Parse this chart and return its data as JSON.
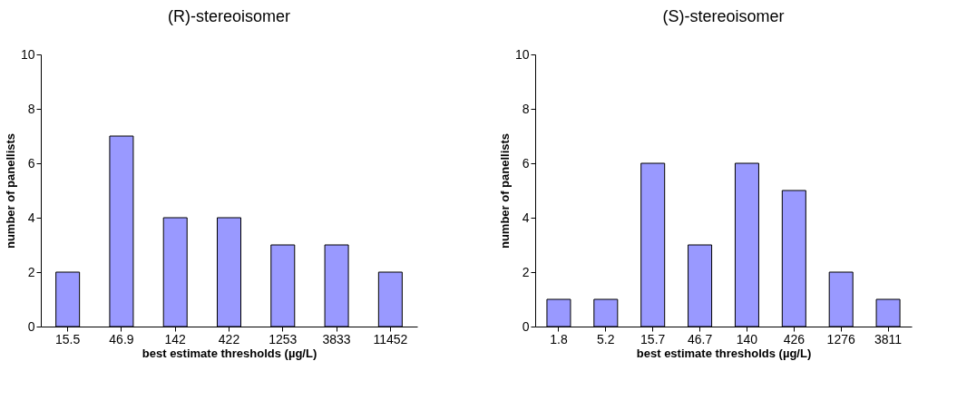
{
  "chart_data": [
    {
      "type": "bar",
      "title": "(R)-stereoisomer",
      "xlabel": "best estimate thresholds (µg/L)",
      "ylabel": "number of panellists",
      "categories": [
        "15.5",
        "46.9",
        "142",
        "422",
        "1253",
        "3833",
        "11452"
      ],
      "values": [
        2,
        7,
        4,
        4,
        3,
        3,
        2
      ],
      "color": "#9999ff",
      "ylim": [
        0,
        10
      ],
      "yticks": [
        0,
        2,
        4,
        6,
        8,
        10
      ],
      "grid": false
    },
    {
      "type": "bar",
      "title": "(S)-stereoisomer",
      "xlabel": "best estimate thresholds (µg/L)",
      "ylabel": "number of panellists",
      "categories": [
        "1.8",
        "5.2",
        "15.7",
        "46.7",
        "140",
        "426",
        "1276",
        "3811"
      ],
      "values": [
        1,
        1,
        6,
        3,
        6,
        5,
        2,
        1
      ],
      "color": "#9999ff",
      "ylim": [
        0,
        10
      ],
      "yticks": [
        0,
        2,
        4,
        6,
        8,
        10
      ],
      "grid": false
    }
  ]
}
